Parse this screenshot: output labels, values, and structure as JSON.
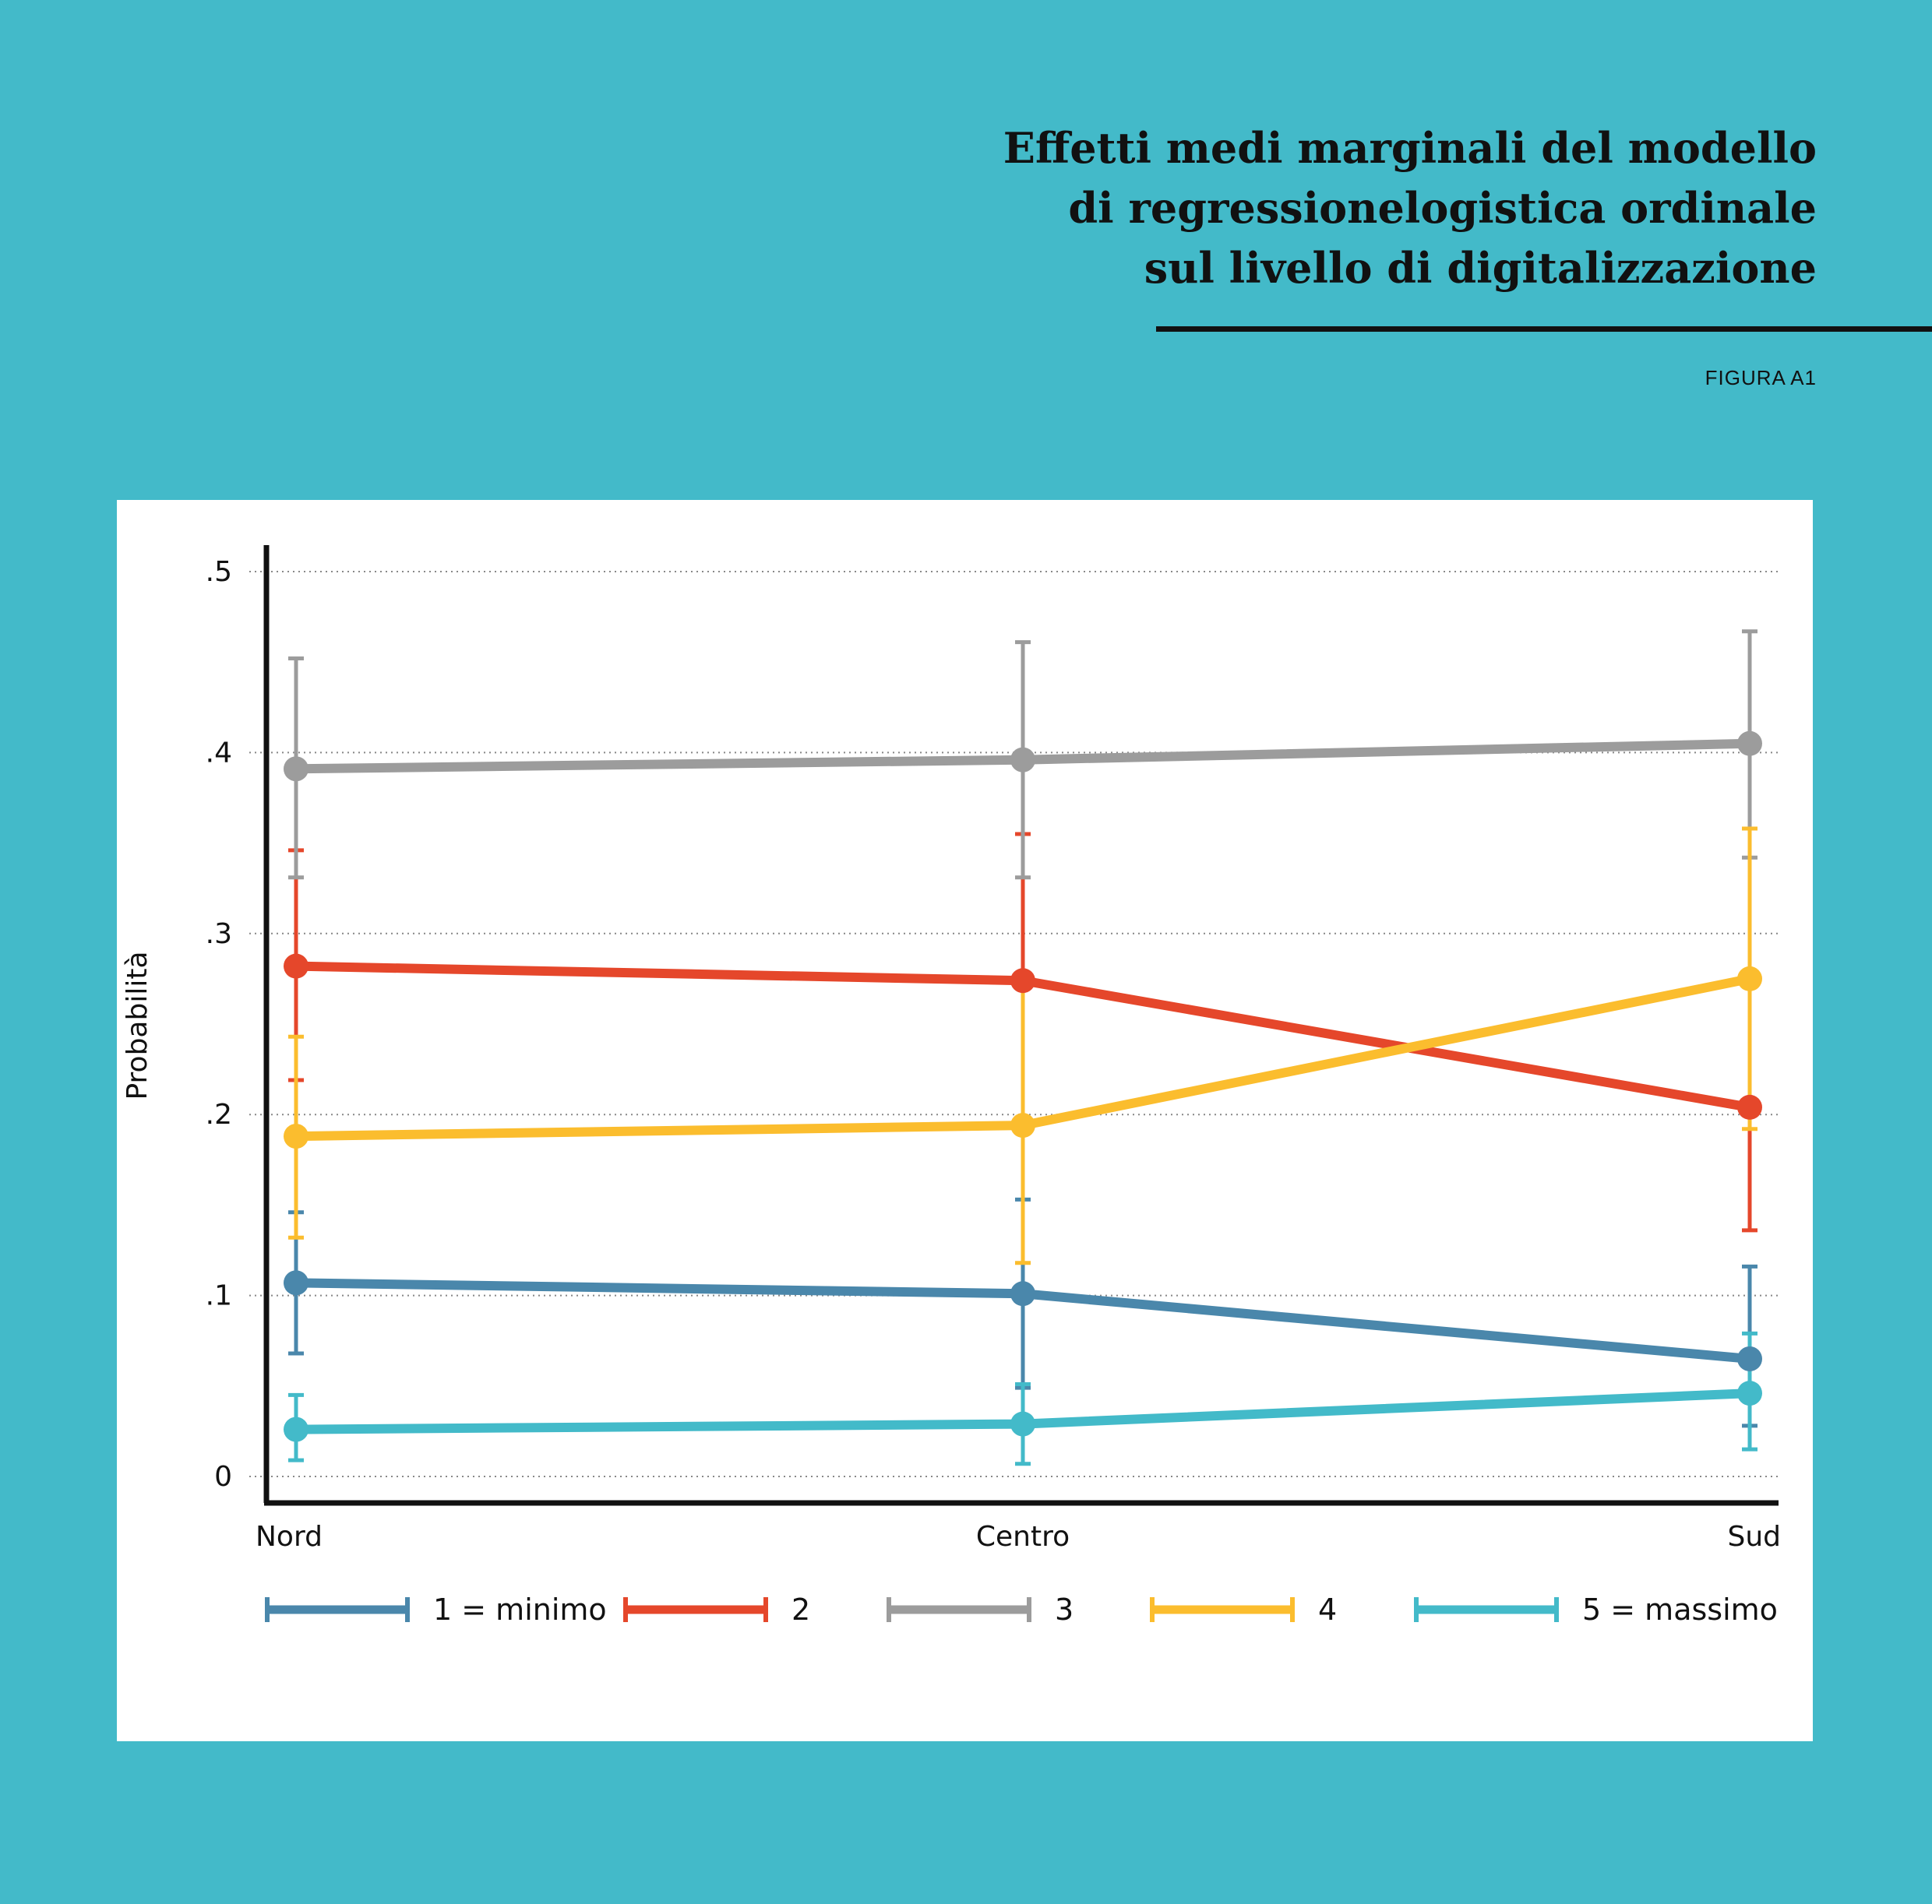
{
  "header": {
    "title_lines": [
      "Effetti medi marginali del modello",
      "di regressionelogistica ordinale",
      "sul livello di digitalizzazione"
    ],
    "figure_label": "FIGURA A1"
  },
  "colors": {
    "background": "#43bac9",
    "panel": "#ffffff",
    "axis": "#111111",
    "grid": "#888888"
  },
  "chart_data": {
    "type": "line",
    "ylabel": "Probabilità",
    "xlabel": "",
    "categories": [
      "Nord",
      "Centro",
      "Sud"
    ],
    "ylim": [
      0,
      0.5
    ],
    "yticks": [
      0,
      0.1,
      0.2,
      0.3,
      0.4,
      0.5
    ],
    "ytick_labels": [
      "0",
      ".1",
      ".2",
      ".3",
      ".4",
      ".5"
    ],
    "grid": "horizontal dotted",
    "legend_position": "bottom",
    "error_bars": "confidence intervals",
    "series": [
      {
        "name": "1 = minimo",
        "color": "#4a87ab",
        "values": [
          0.107,
          0.101,
          0.065
        ],
        "lower": [
          0.068,
          0.049,
          0.028
        ],
        "upper": [
          0.146,
          0.153,
          0.116
        ]
      },
      {
        "name": "2",
        "color": "#e5472b",
        "values": [
          0.282,
          0.274,
          0.204
        ],
        "lower": [
          0.219,
          0.194,
          0.136
        ],
        "upper": [
          0.346,
          0.355,
          0.272
        ]
      },
      {
        "name": "3",
        "color": "#9c9c9c",
        "values": [
          0.391,
          0.396,
          0.405
        ],
        "lower": [
          0.331,
          0.331,
          0.342
        ],
        "upper": [
          0.452,
          0.461,
          0.467
        ]
      },
      {
        "name": "4",
        "color": "#fbbd2e",
        "values": [
          0.188,
          0.194,
          0.275
        ],
        "lower": [
          0.132,
          0.118,
          0.192
        ],
        "upper": [
          0.243,
          0.271,
          0.358
        ]
      },
      {
        "name": "5 = massimo",
        "color": "#43bac9",
        "values": [
          0.026,
          0.029,
          0.046
        ],
        "lower": [
          0.009,
          0.007,
          0.015
        ],
        "upper": [
          0.045,
          0.051,
          0.079
        ]
      }
    ]
  }
}
